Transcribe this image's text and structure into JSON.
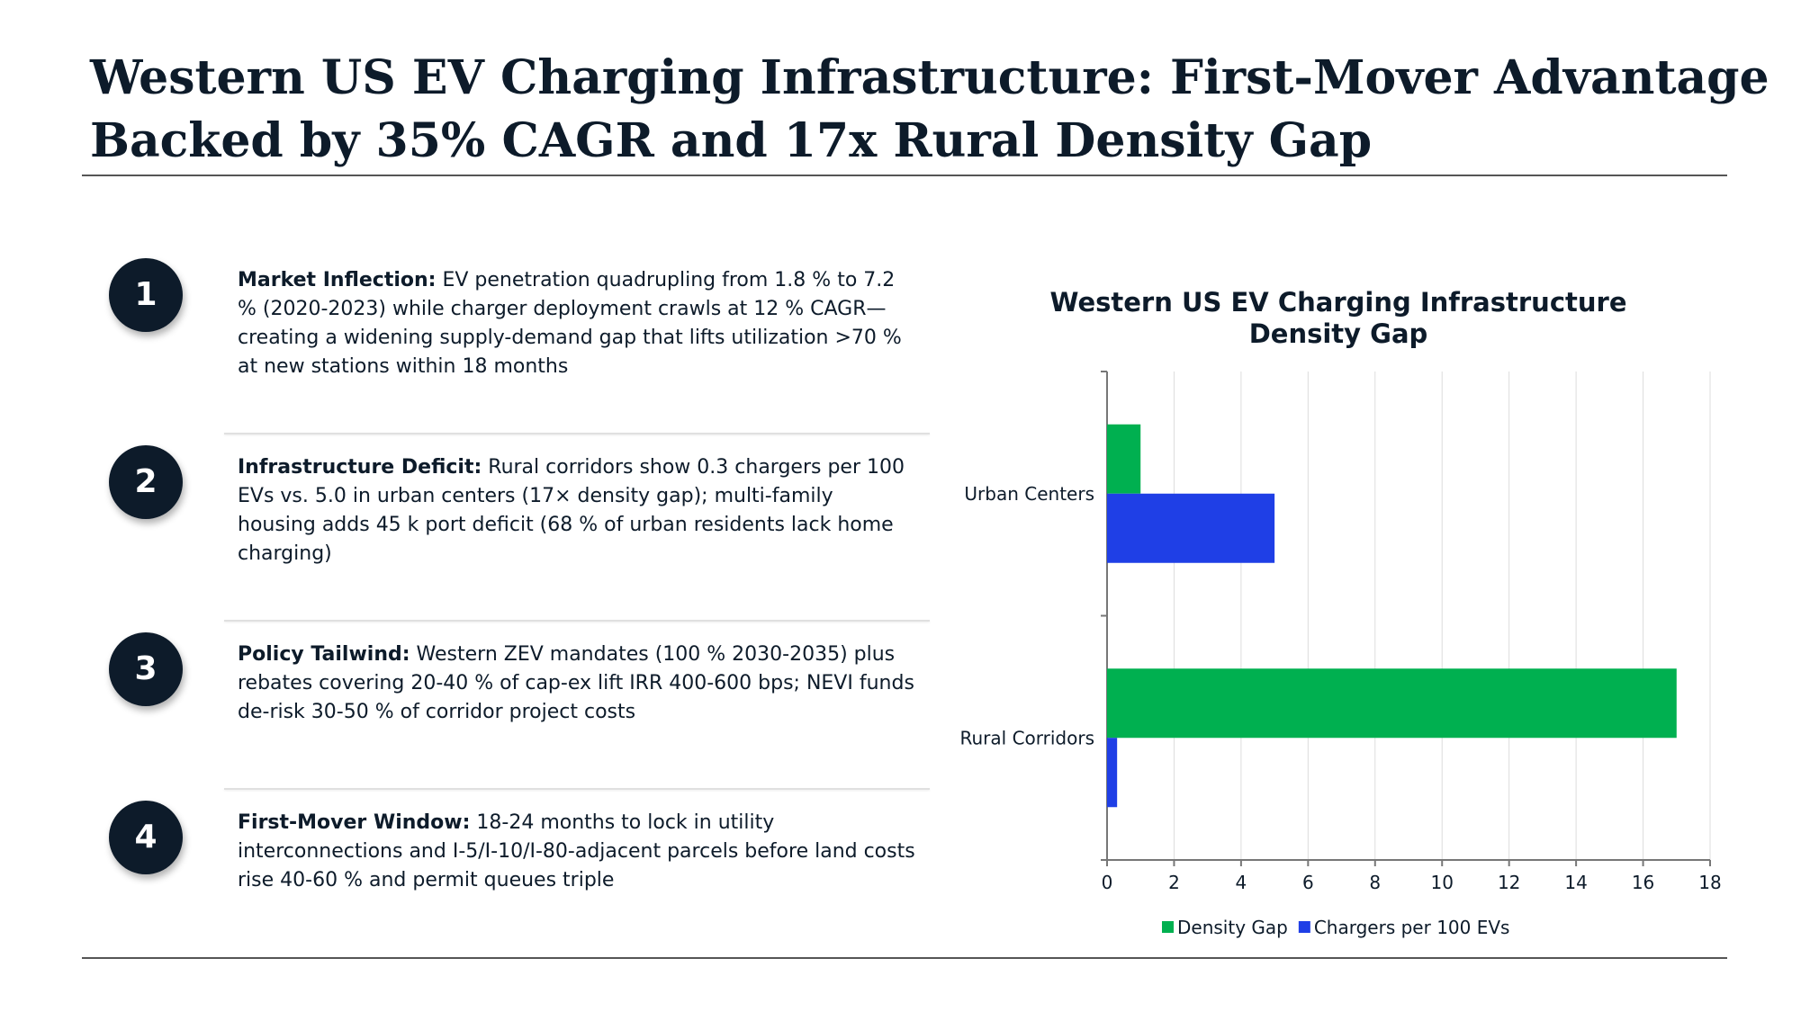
{
  "title": {
    "line1": "Western US EV Charging Infrastructure: First-Mover Advantage",
    "line2": "Backed by 35% CAGR and 17x Rural Density Gap"
  },
  "points": [
    {
      "number": "1",
      "heading": "Market Inflection:",
      "body": " EV penetration quadrupling from 1.8 % to 7.2 % (2020-2023) while charger deployment crawls at 12 % CAGR—creating a widening supply-demand gap that lifts utilization >70 % at new stations within 18 months"
    },
    {
      "number": "2",
      "heading": "Infrastructure Deficit:",
      "body": " Rural corridors show 0.3 chargers per 100 EVs vs. 5.0 in urban centers (17× density gap); multi-family housing adds 45 k port deficit (68 % of urban residents lack home charging)"
    },
    {
      "number": "3",
      "heading": "Policy Tailwind:",
      "body": " Western ZEV mandates (100 % 2030-2035) plus rebates covering 20-40 % of cap-ex lift IRR 400-600 bps; NEVI funds de-risk 30-50 % of corridor project costs"
    },
    {
      "number": "4",
      "heading": "First-Mover Window:",
      "body": " 18-24 months to lock in utility interconnections and I-5/I-10/I-80-adjacent parcels before land costs rise 40-60 % and permit queues triple"
    }
  ],
  "chart_data": {
    "type": "bar",
    "orientation": "horizontal",
    "title_line1": "Western US EV Charging Infrastructure",
    "title_line2": "Density Gap",
    "categories": [
      "Urban Centers",
      "Rural Corridors"
    ],
    "series": [
      {
        "name": "Density Gap",
        "values": [
          1,
          17
        ],
        "color": "#00b050"
      },
      {
        "name": "Chargers per 100 EVs",
        "values": [
          5.0,
          0.3
        ],
        "color": "#1f3fe6"
      }
    ],
    "xlim": [
      0,
      18
    ],
    "xticks": [
      "0",
      "2",
      "4",
      "6",
      "8",
      "10",
      "12",
      "14",
      "16",
      "18"
    ],
    "grid": true,
    "legend": "bottom"
  }
}
